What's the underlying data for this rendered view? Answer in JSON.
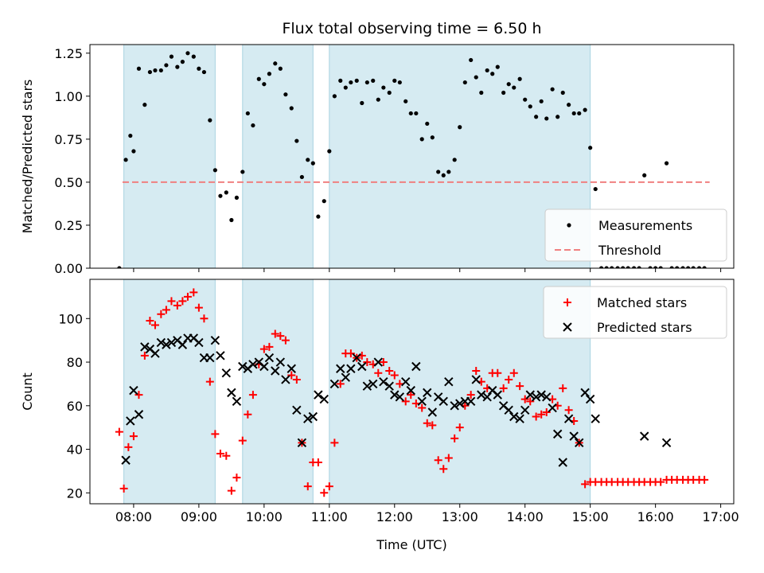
{
  "chart_data": [
    {
      "type": "scatter",
      "title": "Flux total observing time = 6.50 h",
      "xlabel": "",
      "ylabel": "Matched/Predicted stars",
      "xlim": [
        7.33,
        17.2
      ],
      "ylim": [
        0,
        1.3
      ],
      "xticks": [
        8,
        9,
        10,
        11,
        12,
        13,
        14,
        15,
        16,
        17
      ],
      "yticks": [
        0,
        0.25,
        0.5,
        0.75,
        1.0,
        1.25
      ],
      "ytick_labels": [
        "0.00",
        "0.25",
        "0.50",
        "0.75",
        "1.00",
        "1.25"
      ],
      "shaded_intervals": [
        [
          7.85,
          9.25
        ],
        [
          9.67,
          10.75
        ],
        [
          11.0,
          15.0
        ]
      ],
      "legend": {
        "location": "lower-right",
        "entries": [
          "Measurements",
          "Threshold"
        ]
      },
      "threshold": {
        "name": "Threshold",
        "value": 0.5,
        "x_range": [
          7.83,
          16.83
        ],
        "color": "#f08080"
      },
      "series": [
        {
          "name": "Measurements",
          "marker": "dot",
          "color": "#000000",
          "x": [
            7.78,
            7.88,
            7.95,
            8.0,
            8.08,
            8.17,
            8.25,
            8.33,
            8.42,
            8.5,
            8.58,
            8.67,
            8.75,
            8.83,
            8.92,
            9.0,
            9.08,
            9.17,
            9.25,
            9.33,
            9.42,
            9.5,
            9.58,
            9.67,
            9.75,
            9.83,
            9.92,
            10.0,
            10.08,
            10.17,
            10.25,
            10.33,
            10.42,
            10.5,
            10.58,
            10.67,
            10.75,
            10.83,
            10.92,
            11.0,
            11.08,
            11.17,
            11.25,
            11.33,
            11.42,
            11.5,
            11.58,
            11.67,
            11.75,
            11.83,
            11.92,
            12.0,
            12.08,
            12.17,
            12.25,
            12.33,
            12.42,
            12.5,
            12.58,
            12.67,
            12.75,
            12.83,
            12.92,
            13.0,
            13.08,
            13.17,
            13.25,
            13.33,
            13.42,
            13.5,
            13.58,
            13.67,
            13.75,
            13.83,
            13.92,
            14.0,
            14.08,
            14.17,
            14.25,
            14.33,
            14.42,
            14.5,
            14.58,
            14.67,
            14.75,
            14.83,
            14.92,
            15.0,
            15.08,
            15.17,
            15.25,
            15.33,
            15.42,
            15.5,
            15.58,
            15.67,
            15.75,
            15.83,
            15.92,
            16.0,
            16.08,
            16.17,
            16.25,
            16.33,
            16.42,
            16.5,
            16.58,
            16.67,
            16.75
          ],
          "y": [
            0.0,
            0.63,
            0.77,
            0.68,
            1.16,
            0.95,
            1.14,
            1.15,
            1.15,
            1.18,
            1.23,
            1.17,
            1.2,
            1.25,
            1.23,
            1.16,
            1.14,
            0.86,
            0.57,
            0.42,
            0.44,
            0.28,
            0.41,
            0.56,
            0.9,
            0.83,
            1.1,
            1.07,
            1.13,
            1.19,
            1.16,
            1.01,
            0.93,
            0.74,
            0.53,
            0.63,
            0.61,
            0.3,
            0.39,
            0.68,
            1.0,
            1.09,
            1.05,
            1.08,
            1.09,
            0.96,
            1.08,
            1.09,
            0.98,
            1.05,
            1.02,
            1.09,
            1.08,
            0.97,
            0.9,
            0.9,
            0.75,
            0.84,
            0.76,
            0.56,
            0.54,
            0.56,
            0.63,
            0.82,
            1.08,
            1.21,
            1.11,
            1.02,
            1.15,
            1.13,
            1.17,
            1.02,
            1.07,
            1.05,
            1.1,
            0.98,
            0.94,
            0.88,
            0.97,
            0.87,
            1.04,
            0.88,
            1.02,
            0.95,
            0.9,
            0.9,
            0.92,
            0.7,
            0.46,
            0.0,
            0.0,
            0.0,
            0.0,
            0.0,
            0.0,
            0.0,
            0.0,
            0.54,
            0.0,
            0.0,
            0.0,
            0.61,
            0.0,
            0.0,
            0.0,
            0.0,
            0.0,
            0.0,
            0.0
          ]
        }
      ]
    },
    {
      "type": "scatter",
      "title": "",
      "xlabel": "Time (UTC)",
      "ylabel": "Count",
      "xlim": [
        7.33,
        17.2
      ],
      "ylim": [
        15,
        118
      ],
      "xticks": [
        8,
        9,
        10,
        11,
        12,
        13,
        14,
        15,
        16,
        17
      ],
      "xtick_labels": [
        "08:00",
        "09:00",
        "10:00",
        "11:00",
        "12:00",
        "13:00",
        "14:00",
        "15:00",
        "16:00",
        "17:00"
      ],
      "yticks": [
        20,
        40,
        60,
        80,
        100
      ],
      "ytick_labels": [
        "20",
        "40",
        "60",
        "80",
        "100"
      ],
      "shaded_intervals": [
        [
          7.85,
          9.25
        ],
        [
          9.67,
          10.75
        ],
        [
          11.0,
          15.0
        ]
      ],
      "legend": {
        "location": "top-right",
        "entries": [
          "Matched stars",
          "Predicted stars"
        ]
      },
      "series": [
        {
          "name": "Matched stars",
          "marker": "plus",
          "color": "#ff0000",
          "x": [
            7.78,
            7.85,
            7.92,
            8.0,
            8.08,
            8.17,
            8.25,
            8.33,
            8.42,
            8.5,
            8.58,
            8.67,
            8.75,
            8.83,
            8.92,
            9.0,
            9.08,
            9.17,
            9.25,
            9.33,
            9.42,
            9.5,
            9.58,
            9.67,
            9.75,
            9.83,
            9.92,
            10.0,
            10.08,
            10.17,
            10.25,
            10.33,
            10.42,
            10.5,
            10.58,
            10.67,
            10.75,
            10.83,
            10.92,
            11.0,
            11.08,
            11.17,
            11.25,
            11.33,
            11.42,
            11.5,
            11.58,
            11.67,
            11.75,
            11.83,
            11.92,
            12.0,
            12.08,
            12.17,
            12.25,
            12.33,
            12.42,
            12.5,
            12.58,
            12.67,
            12.75,
            12.83,
            12.92,
            13.0,
            13.08,
            13.17,
            13.25,
            13.33,
            13.42,
            13.5,
            13.58,
            13.67,
            13.75,
            13.83,
            13.92,
            14.0,
            14.08,
            14.17,
            14.25,
            14.33,
            14.42,
            14.5,
            14.58,
            14.67,
            14.75,
            14.83,
            14.92,
            15.0,
            15.08,
            15.17,
            15.25,
            15.33,
            15.42,
            15.5,
            15.58,
            15.67,
            15.75,
            15.83,
            15.92,
            16.0,
            16.08,
            16.17,
            16.25,
            16.33,
            16.42,
            16.5,
            16.58,
            16.67,
            16.75
          ],
          "y": [
            48,
            22,
            41,
            46,
            65,
            83,
            99,
            97,
            102,
            104,
            108,
            106,
            108,
            110,
            112,
            105,
            100,
            71,
            47,
            38,
            37,
            21,
            27,
            44,
            56,
            65,
            79,
            86,
            87,
            93,
            92,
            90,
            74,
            72,
            43,
            23,
            34,
            34,
            20,
            23,
            43,
            70,
            84,
            84,
            82,
            83,
            80,
            79,
            75,
            80,
            76,
            74,
            70,
            62,
            65,
            61,
            59,
            52,
            51,
            35,
            31,
            36,
            45,
            50,
            60,
            65,
            76,
            71,
            68,
            75,
            75,
            68,
            72,
            75,
            69,
            63,
            62,
            55,
            56,
            57,
            63,
            60,
            68,
            58,
            53,
            43,
            24,
            25,
            25,
            25,
            25,
            25,
            25,
            25,
            25,
            25,
            25,
            25,
            25,
            25,
            25,
            26,
            26,
            26,
            26,
            26,
            26,
            26,
            26
          ],
          "note": "same x grid as measurement series"
        },
        {
          "name": "Predicted stars",
          "marker": "x",
          "color": "#000000",
          "x": [
            7.88,
            7.95,
            8.0,
            8.08,
            8.17,
            8.25,
            8.33,
            8.42,
            8.5,
            8.58,
            8.67,
            8.75,
            8.83,
            8.92,
            9.0,
            9.08,
            9.17,
            9.25,
            9.33,
            9.42,
            9.5,
            9.58,
            9.67,
            9.75,
            9.83,
            9.92,
            10.0,
            10.08,
            10.17,
            10.25,
            10.33,
            10.42,
            10.5,
            10.58,
            10.67,
            10.75,
            10.83,
            10.92,
            11.08,
            11.17,
            11.25,
            11.33,
            11.42,
            11.5,
            11.58,
            11.67,
            11.75,
            11.83,
            11.92,
            12.0,
            12.08,
            12.17,
            12.25,
            12.33,
            12.42,
            12.5,
            12.58,
            12.67,
            12.75,
            12.83,
            12.92,
            13.0,
            13.08,
            13.17,
            13.25,
            13.33,
            13.42,
            13.5,
            13.58,
            13.67,
            13.75,
            13.83,
            13.92,
            14.0,
            14.08,
            14.17,
            14.25,
            14.33,
            14.42,
            14.5,
            14.58,
            14.67,
            14.75,
            14.83,
            14.92,
            15.0,
            15.08,
            15.83,
            16.17
          ],
          "y": [
            35,
            53,
            67,
            56,
            87,
            86,
            84,
            89,
            88,
            89,
            90,
            88,
            91,
            91,
            89,
            82,
            82,
            90,
            83,
            75,
            66,
            62,
            78,
            77,
            79,
            80,
            78,
            82,
            76,
            80,
            72,
            77,
            58,
            43,
            54,
            55,
            65,
            63,
            70,
            77,
            73,
            77,
            82,
            78,
            69,
            70,
            80,
            71,
            69,
            65,
            64,
            71,
            67,
            78,
            62,
            66,
            57,
            64,
            62,
            71,
            60,
            61,
            62,
            62,
            72,
            65,
            64,
            67,
            65,
            60,
            58,
            55,
            54,
            58,
            65,
            64,
            65,
            64,
            59,
            47,
            34,
            54,
            46,
            43,
            66,
            63,
            54,
            46,
            43
          ]
        }
      ]
    }
  ]
}
